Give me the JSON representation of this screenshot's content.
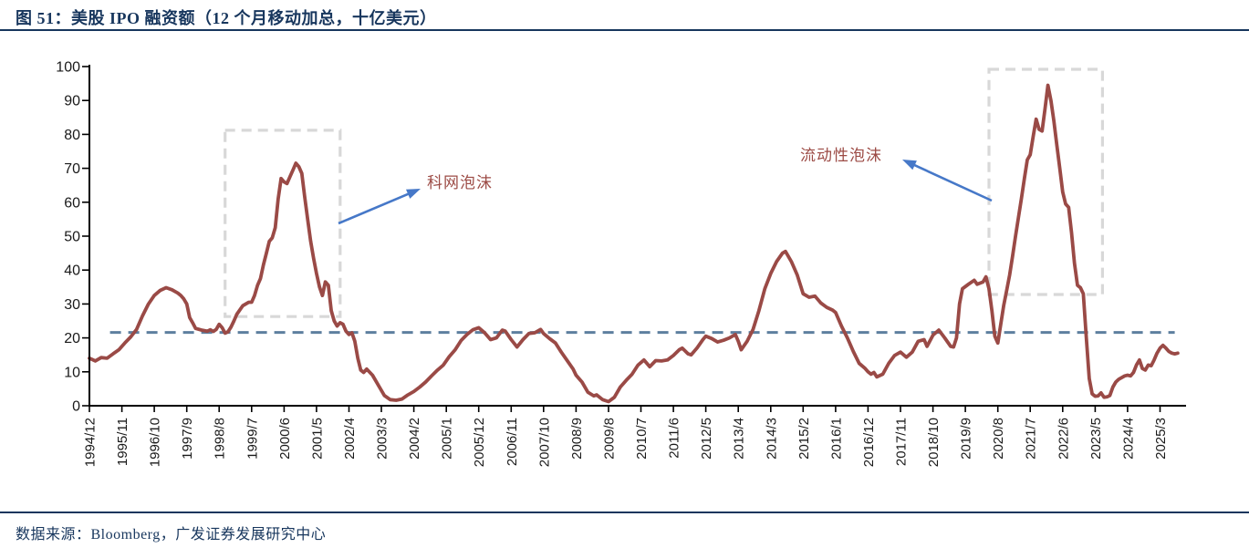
{
  "title": "图 51：美股 IPO 融资额（12 个月移动加总，十亿美元）",
  "source": "数据来源：Bloomberg，广发证券发展研究中心",
  "colors": {
    "title_navy": "#17365D",
    "rule_navy": "#17365D",
    "series_maroon": "#9A4A46",
    "mean_dash_blue": "#5D7F9F",
    "box_gray": "#D8D8D8",
    "arrow_blue": "#4678C8",
    "axis_black": "#000000",
    "annotation_maroon": "#9C4B45",
    "tick_label_black": "#1A1A1A"
  },
  "annotations": [
    {
      "label": "科网泡沫"
    },
    {
      "label": "流动性泡沫"
    }
  ],
  "chart_data": {
    "type": "line",
    "title": "美股 IPO 融资额（12 个月移动加总，十亿美元）",
    "xlabel": "",
    "ylabel": "",
    "ylim": [
      0,
      100
    ],
    "ytick_step": 10,
    "grid": false,
    "legend": "none",
    "x_unit": "months since 1994/12",
    "x_tick_month_interval": 11,
    "x_tick_labels": [
      "1994/12",
      "1995/11",
      "1996/10",
      "1997/9",
      "1998/8",
      "1999/7",
      "2000/6",
      "2001/5",
      "2002/4",
      "2003/3",
      "2004/2",
      "2005/1",
      "2005/12",
      "2006/11",
      "2007/10",
      "2008/9",
      "2009/8",
      "2010/7",
      "2011/6",
      "2012/5",
      "2013/4",
      "2014/3",
      "2015/2",
      "2016/1",
      "2016/12",
      "2017/11",
      "2018/10",
      "2019/9",
      "2020/8",
      "2021/7",
      "2022/6",
      "2023/5",
      "2024/4",
      "2025/3"
    ],
    "series": [
      {
        "name": "美股IPO融资额（12个月移动加总，十亿美元）",
        "color": "#9A4A46",
        "points": [
          [
            0,
            14
          ],
          [
            2,
            13.2
          ],
          [
            4,
            14.2
          ],
          [
            6,
            14
          ],
          [
            8,
            15.3
          ],
          [
            10,
            16.5
          ],
          [
            12,
            18.5
          ],
          [
            14,
            20.3
          ],
          [
            16,
            22.5
          ],
          [
            18,
            26.5
          ],
          [
            20,
            30
          ],
          [
            22,
            32.5
          ],
          [
            24,
            34
          ],
          [
            26,
            34.8
          ],
          [
            28,
            34.2
          ],
          [
            30,
            33.2
          ],
          [
            31,
            32.5
          ],
          [
            32,
            31.5
          ],
          [
            33,
            30
          ],
          [
            34,
            26
          ],
          [
            35,
            24.5
          ],
          [
            36,
            22.8
          ],
          [
            38,
            22.3
          ],
          [
            40,
            22
          ],
          [
            41,
            22.4
          ],
          [
            42,
            21.9
          ],
          [
            43,
            22.5
          ],
          [
            44,
            24
          ],
          [
            45,
            23
          ],
          [
            46,
            21.4
          ],
          [
            47,
            21.8
          ],
          [
            48,
            23.2
          ],
          [
            49,
            25
          ],
          [
            50,
            27
          ],
          [
            52,
            29.5
          ],
          [
            54,
            30.5
          ],
          [
            55,
            30.5
          ],
          [
            56,
            32.5
          ],
          [
            57,
            35.5
          ],
          [
            58,
            37.5
          ],
          [
            59,
            41.5
          ],
          [
            60,
            45
          ],
          [
            61,
            48.5
          ],
          [
            62,
            49.5
          ],
          [
            63,
            52.5
          ],
          [
            64,
            61
          ],
          [
            65,
            67
          ],
          [
            66,
            66
          ],
          [
            67,
            65.5
          ],
          [
            68,
            67.5
          ],
          [
            69,
            69.5
          ],
          [
            70,
            71.5
          ],
          [
            71,
            70.5
          ],
          [
            72,
            68.5
          ],
          [
            73,
            61.5
          ],
          [
            74,
            55
          ],
          [
            75,
            48.5
          ],
          [
            76,
            43.5
          ],
          [
            77,
            39
          ],
          [
            78,
            35
          ],
          [
            79,
            32.5
          ],
          [
            80,
            36.5
          ],
          [
            81,
            35.5
          ],
          [
            82,
            28
          ],
          [
            83,
            25
          ],
          [
            84,
            23.5
          ],
          [
            85,
            24.5
          ],
          [
            86,
            24
          ],
          [
            87,
            22
          ],
          [
            88,
            21
          ],
          [
            89,
            21.5
          ],
          [
            90,
            19
          ],
          [
            91,
            14
          ],
          [
            92,
            10.5
          ],
          [
            93,
            9.8
          ],
          [
            94,
            10.8
          ],
          [
            96,
            9
          ],
          [
            98,
            6
          ],
          [
            100,
            3
          ],
          [
            102,
            1.8
          ],
          [
            104,
            1.6
          ],
          [
            106,
            2
          ],
          [
            108,
            3.2
          ],
          [
            110,
            4.2
          ],
          [
            112,
            5.5
          ],
          [
            114,
            7
          ],
          [
            116,
            8.8
          ],
          [
            118,
            10.5
          ],
          [
            120,
            12
          ],
          [
            122,
            14.5
          ],
          [
            124,
            16.5
          ],
          [
            126,
            19.2
          ],
          [
            128,
            21
          ],
          [
            130,
            22.4
          ],
          [
            132,
            23
          ],
          [
            134,
            21.5
          ],
          [
            136,
            19.5
          ],
          [
            138,
            20
          ],
          [
            140,
            22.3
          ],
          [
            141,
            22
          ],
          [
            143,
            19.5
          ],
          [
            145,
            17.3
          ],
          [
            147,
            19.5
          ],
          [
            149,
            21.3
          ],
          [
            151,
            21.5
          ],
          [
            153,
            22.5
          ],
          [
            154,
            21.3
          ],
          [
            156,
            19.8
          ],
          [
            158,
            18.5
          ],
          [
            160,
            15.8
          ],
          [
            162,
            13.3
          ],
          [
            164,
            10.8
          ],
          [
            165,
            9
          ],
          [
            167,
            7
          ],
          [
            169,
            4
          ],
          [
            171,
            2.9
          ],
          [
            172,
            3.2
          ],
          [
            174,
            1.8
          ],
          [
            176,
            1.2
          ],
          [
            178,
            2.5
          ],
          [
            180,
            5.5
          ],
          [
            182,
            7.5
          ],
          [
            184,
            9.3
          ],
          [
            186,
            12
          ],
          [
            188,
            13.5
          ],
          [
            190,
            11.5
          ],
          [
            192,
            13.3
          ],
          [
            194,
            13.2
          ],
          [
            196,
            13.5
          ],
          [
            198,
            14.8
          ],
          [
            200,
            16.5
          ],
          [
            201,
            17
          ],
          [
            203,
            15.3
          ],
          [
            204,
            15
          ],
          [
            206,
            17
          ],
          [
            208,
            19.5
          ],
          [
            209,
            20.5
          ],
          [
            211,
            19.8
          ],
          [
            213,
            18.8
          ],
          [
            215,
            19.3
          ],
          [
            217,
            20
          ],
          [
            219,
            21
          ],
          [
            220,
            19
          ],
          [
            221,
            16.5
          ],
          [
            223,
            19
          ],
          [
            225,
            22.5
          ],
          [
            227,
            28
          ],
          [
            229,
            34.5
          ],
          [
            231,
            39
          ],
          [
            233,
            42.5
          ],
          [
            235,
            45
          ],
          [
            236,
            45.5
          ],
          [
            238,
            42.5
          ],
          [
            240,
            38.5
          ],
          [
            242,
            33
          ],
          [
            244,
            32
          ],
          [
            246,
            32.3
          ],
          [
            248,
            30.3
          ],
          [
            250,
            29
          ],
          [
            252,
            28.2
          ],
          [
            253,
            27.5
          ],
          [
            255,
            23.5
          ],
          [
            257,
            20
          ],
          [
            259,
            16
          ],
          [
            261,
            12.5
          ],
          [
            263,
            11
          ],
          [
            264,
            10
          ],
          [
            265,
            9.3
          ],
          [
            266,
            9.8
          ],
          [
            267,
            8.5
          ],
          [
            269,
            9.3
          ],
          [
            271,
            12.5
          ],
          [
            273,
            14.8
          ],
          [
            275,
            15.8
          ],
          [
            277,
            14.3
          ],
          [
            279,
            15.8
          ],
          [
            281,
            19
          ],
          [
            283,
            19.5
          ],
          [
            284,
            17.5
          ],
          [
            286,
            20.8
          ],
          [
            288,
            22.3
          ],
          [
            290,
            20
          ],
          [
            292,
            17.5
          ],
          [
            293,
            17.3
          ],
          [
            294,
            20
          ],
          [
            295,
            30
          ],
          [
            296,
            34.5
          ],
          [
            298,
            35.8
          ],
          [
            300,
            37
          ],
          [
            301,
            35.8
          ],
          [
            303,
            36.5
          ],
          [
            304,
            38
          ],
          [
            305,
            34.5
          ],
          [
            306,
            28
          ],
          [
            307,
            20.5
          ],
          [
            308,
            18.5
          ],
          [
            309,
            24
          ],
          [
            310,
            29.5
          ],
          [
            311,
            34
          ],
          [
            312,
            38.5
          ],
          [
            313,
            44
          ],
          [
            314,
            50
          ],
          [
            315,
            55.5
          ],
          [
            316,
            61
          ],
          [
            317,
            67
          ],
          [
            318,
            72.5
          ],
          [
            319,
            74
          ],
          [
            320,
            79.5
          ],
          [
            321,
            84.5
          ],
          [
            322,
            81.5
          ],
          [
            323,
            81
          ],
          [
            324,
            87.5
          ],
          [
            325,
            94.5
          ],
          [
            326,
            90
          ],
          [
            327,
            84
          ],
          [
            328,
            77
          ],
          [
            329,
            70
          ],
          [
            330,
            63
          ],
          [
            331,
            59.5
          ],
          [
            332,
            58.5
          ],
          [
            333,
            51
          ],
          [
            334,
            42
          ],
          [
            335,
            35.5
          ],
          [
            336,
            34.8
          ],
          [
            337,
            33
          ],
          [
            338,
            20
          ],
          [
            339,
            8
          ],
          [
            340,
            3.5
          ],
          [
            341,
            2.8
          ],
          [
            342,
            2.9
          ],
          [
            343,
            3.8
          ],
          [
            344,
            2.5
          ],
          [
            345,
            2.6
          ],
          [
            346,
            3
          ],
          [
            347,
            5.5
          ],
          [
            348,
            7
          ],
          [
            349,
            7.8
          ],
          [
            351,
            8.8
          ],
          [
            352,
            9
          ],
          [
            353,
            8.8
          ],
          [
            354,
            9.8
          ],
          [
            355,
            12
          ],
          [
            356,
            13.5
          ],
          [
            357,
            11
          ],
          [
            358,
            10.5
          ],
          [
            359,
            12
          ],
          [
            360,
            11.8
          ],
          [
            361,
            13.5
          ],
          [
            362,
            15.5
          ],
          [
            363,
            17
          ],
          [
            364,
            17.8
          ],
          [
            365,
            17
          ],
          [
            366,
            16
          ],
          [
            367,
            15.5
          ],
          [
            368,
            15.3
          ],
          [
            369,
            15.5
          ]
        ]
      }
    ],
    "mean_line": {
      "value": 21.6,
      "style": "dashed",
      "color": "#5D7F9F",
      "from_month": 7,
      "to_month": 368
    },
    "highlight_boxes": [
      {
        "label": "科网泡沫",
        "from_month": 46,
        "to_month": 85,
        "value_from": 26.3,
        "value_to": 81.2
      },
      {
        "label": "流动性泡沫",
        "from_month": 305,
        "to_month": 343.5,
        "value_from": 32.8,
        "value_to": 99.2
      }
    ]
  }
}
